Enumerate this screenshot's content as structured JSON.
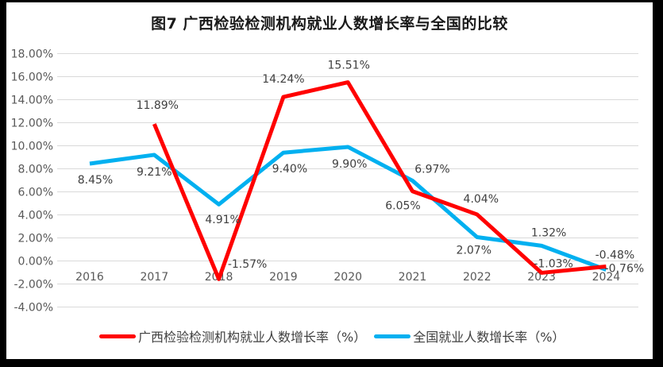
{
  "chart_data": {
    "type": "line",
    "title": "图7 广西检验检测机构就业人数增长率与全国的比较",
    "categories": [
      "2016",
      "2017",
      "2018",
      "2019",
      "2020",
      "2021",
      "2022",
      "2023",
      "2024"
    ],
    "ylim": [
      -4,
      18
    ],
    "ytick_step": 2,
    "y_tick_labels": [
      "18.00%",
      "16.00%",
      "14.00%",
      "12.00%",
      "10.00%",
      "8.00%",
      "6.00%",
      "4.00%",
      "2.00%",
      "0.00%",
      "-2.00%",
      "-4.00%"
    ],
    "grid": true,
    "data_labels": true,
    "legend_position": "bottom",
    "series": [
      {
        "name": "广西检验检测机构就业人数增长率（%）",
        "color": "#FF0000",
        "values": [
          null,
          11.89,
          -1.57,
          14.24,
          15.51,
          6.05,
          4.04,
          -1.03,
          -0.48
        ],
        "point_labels": [
          null,
          "11.89%",
          "-1.57%",
          "14.24%",
          "15.51%",
          "6.05%",
          "4.04%",
          "-1.03%",
          "-0.48%"
        ],
        "label_offsets": [
          null,
          [
            4,
            -24
          ],
          [
            36,
            -19
          ],
          [
            0,
            -23
          ],
          [
            1,
            -22
          ],
          [
            -12,
            18
          ],
          [
            5,
            -20
          ],
          [
            15,
            -12
          ],
          [
            11,
            -15
          ]
        ]
      },
      {
        "name": "全国就业人数增长率（%）",
        "color": "#00B0F0",
        "values": [
          8.45,
          9.21,
          4.91,
          9.4,
          9.9,
          6.97,
          2.07,
          1.32,
          -0.76
        ],
        "point_labels": [
          "8.45%",
          "9.21%",
          "4.91%",
          "9.40%",
          "9.90%",
          "6.97%",
          "2.07%",
          "1.32%",
          "-0.76%"
        ],
        "label_offsets": [
          [
            7,
            20
          ],
          [
            0,
            21
          ],
          [
            5,
            19
          ],
          [
            8,
            20
          ],
          [
            2,
            21
          ],
          [
            25,
            -15
          ],
          [
            -4,
            16
          ],
          [
            9,
            -17
          ],
          [
            23,
            -2
          ]
        ]
      }
    ],
    "colors": {
      "grid": "#D9D9D9",
      "axis_text": "#595959",
      "value_label_text": "#3F3F3F",
      "chart_background": "#FFFFFF",
      "frame": "#000000",
      "legend_text": "#404040"
    }
  }
}
